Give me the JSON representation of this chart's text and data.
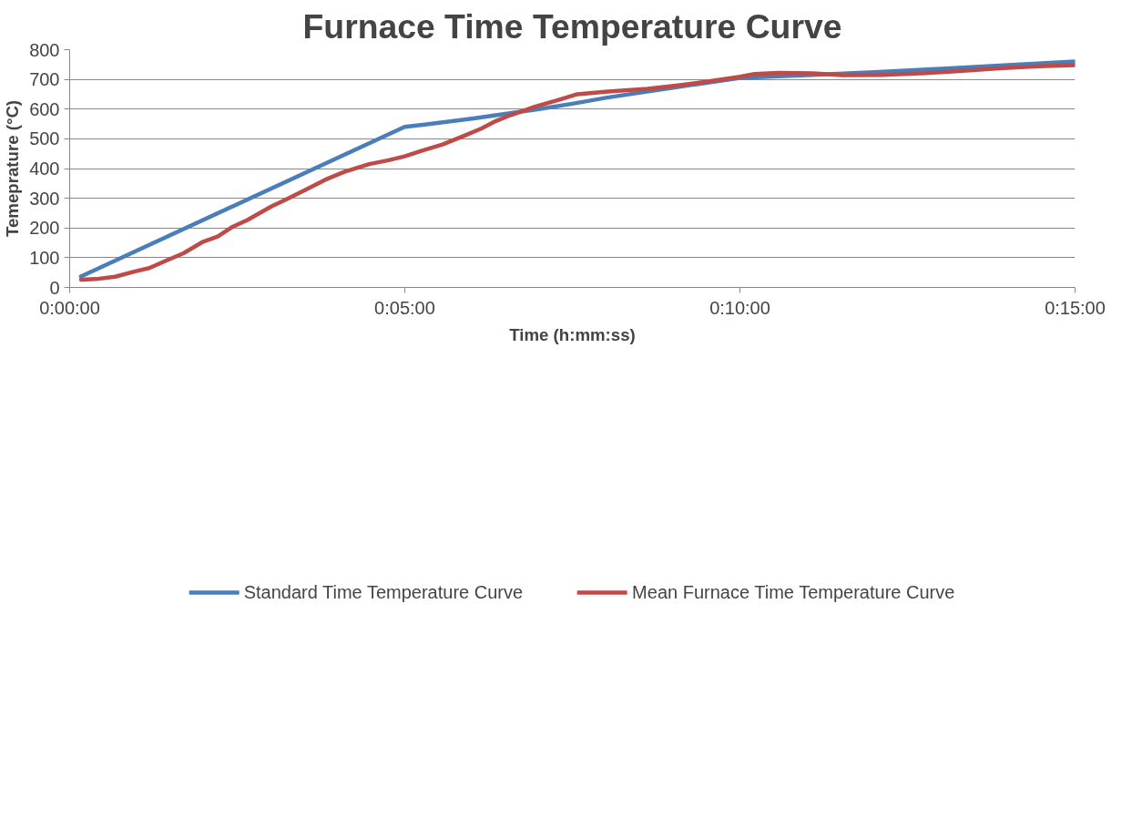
{
  "chart_data": {
    "type": "line",
    "title": "Furnace Time Temperature Curve",
    "xlabel": "Time (h:mm:ss)",
    "ylabel": "Temeprature (°C)",
    "xlim": [
      0,
      0.25
    ],
    "xticks": [
      {
        "value": 0,
        "label": "0:00:00"
      },
      {
        "value": 0.08333,
        "label": "0:05:00"
      },
      {
        "value": 0.16667,
        "label": "0:10:00"
      },
      {
        "value": 0.25,
        "label": "0:15:00"
      }
    ],
    "ylim": [
      0,
      800
    ],
    "yticks": [
      0,
      100,
      200,
      300,
      400,
      500,
      600,
      700,
      800
    ],
    "grid": "y",
    "legend": "bottom",
    "marker": "none",
    "line_style": "solid",
    "series": [
      {
        "name": "Standard Time Temperature Curve",
        "color": "#4a7ebb",
        "x": [
          0.0028,
          0.0833,
          0.0883,
          0.1,
          0.1167,
          0.125,
          0.1333,
          0.15,
          0.1667,
          0.1833,
          0.2,
          0.2167,
          0.2333,
          0.25
        ],
        "values": [
          37,
          540,
          548,
          568,
          600,
          618,
          638,
          672,
          705,
          714,
          724,
          736,
          748,
          760
        ]
      },
      {
        "name": "Mean Furnace Time Temperature Curve",
        "color": "#be4b48",
        "x": [
          0.0028,
          0.0065,
          0.0113,
          0.0163,
          0.0198,
          0.0243,
          0.0283,
          0.0332,
          0.0368,
          0.0405,
          0.0442,
          0.0502,
          0.0538,
          0.0587,
          0.0635,
          0.0683,
          0.0745,
          0.0793,
          0.0833,
          0.0878,
          0.0927,
          0.0975,
          0.1023,
          0.106,
          0.1097,
          0.1157,
          0.1218,
          0.1262,
          0.1338,
          0.1437,
          0.1508,
          0.1582,
          0.1667,
          0.1703,
          0.1763,
          0.1848,
          0.1922,
          0.2018,
          0.2115,
          0.2213,
          0.231,
          0.2407,
          0.25
        ],
        "values": [
          26,
          28,
          36,
          54,
          65,
          92,
          115,
          154,
          171,
          204,
          227,
          273,
          296,
          329,
          362,
          389,
          415,
          428,
          441,
          461,
          481,
          507,
          534,
          560,
          580,
          608,
          632,
          650,
          659,
          668,
          679,
          692,
          709,
          718,
          722,
          720,
          714,
          715,
          720,
          728,
          737,
          744,
          748
        ]
      }
    ]
  }
}
